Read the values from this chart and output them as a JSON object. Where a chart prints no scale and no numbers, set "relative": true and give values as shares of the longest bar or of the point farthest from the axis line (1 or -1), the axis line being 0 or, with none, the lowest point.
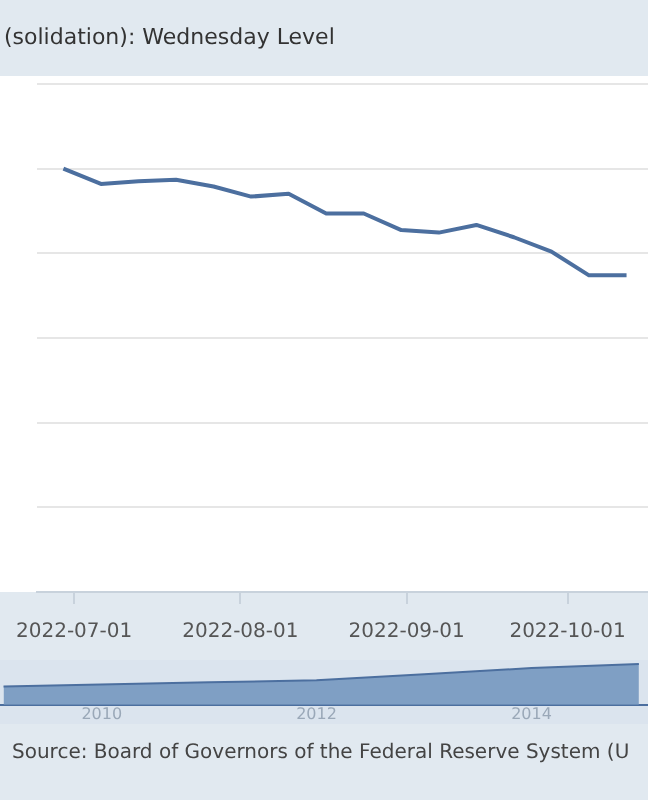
{
  "chart_data": [
    {
      "type": "line",
      "title": "(solidation): Wednesday Level",
      "relative": true,
      "grid": "y",
      "legend": false,
      "marker": "none",
      "line_style": "solid",
      "x": [
        "2022-06-29",
        "2022-07-06",
        "2022-07-13",
        "2022-07-20",
        "2022-07-27",
        "2022-08-03",
        "2022-08-10",
        "2022-08-17",
        "2022-08-24",
        "2022-08-31",
        "2022-09-07",
        "2022-09-14",
        "2022-09-21",
        "2022-09-28",
        "2022-10-05",
        "2022-10-12"
      ],
      "series": [
        {
          "color": "#4c6f9f",
          "values": [
            1,
            0.964,
            0.97,
            0.974,
            0.958,
            0.934,
            0.941,
            0.894,
            0.894,
            0.855,
            0.849,
            0.867,
            0.838,
            0.804,
            0.748,
            0.748
          ]
        }
      ],
      "xlim": [
        "2022-06-24",
        "2022-10-16"
      ],
      "xticks": [
        "2022-07-01",
        "2022-08-01",
        "2022-09-01",
        "2022-10-01"
      ],
      "annotations": [
        "Source: Board of Governors of the Federal Reserve System (U"
      ]
    },
    {
      "type": "area",
      "relative": true,
      "grid": false,
      "legend": false,
      "marker": "none",
      "x": [
        "2009-02",
        "2011-01",
        "2012-01",
        "2013-01",
        "2014-01",
        "2015-01"
      ],
      "series": [
        {
          "color": "#7f9fc4",
          "values": [
            0.45,
            0.55,
            0.6,
            0.75,
            0.9,
            1
          ]
        }
      ],
      "xlim": [
        "2009-01-20",
        "2015-02-01"
      ],
      "xticks": [
        {
          "value": "2010-01",
          "label": "2010"
        },
        {
          "value": "2012-01",
          "label": "2012"
        },
        {
          "value": "2014-01",
          "label": "2014"
        }
      ]
    }
  ]
}
